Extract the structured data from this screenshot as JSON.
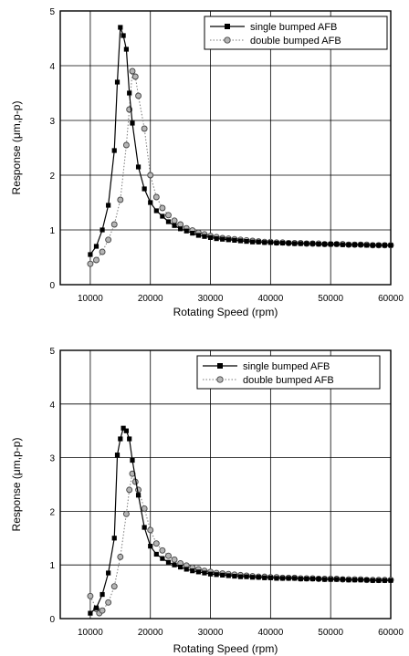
{
  "chart_data": [
    {
      "type": "line",
      "xlabel": "Rotating Speed (rpm)",
      "ylabel": "Response (μm,p-p)",
      "xlim": [
        5000,
        60000
      ],
      "ylim": [
        0,
        5
      ],
      "x_ticks": [
        10000,
        20000,
        30000,
        40000,
        50000,
        60000
      ],
      "y_ticks": [
        0,
        1,
        2,
        3,
        4,
        5
      ],
      "grid": true,
      "legend_position": "top-right",
      "series": [
        {
          "name": "single bumped AFB",
          "marker": "square",
          "line": "solid",
          "color": "#000000",
          "x": [
            10000,
            11000,
            12000,
            13000,
            14000,
            14500,
            15000,
            15500,
            16000,
            16500,
            17000,
            18000,
            19000,
            20000,
            21000,
            22000,
            23000,
            24000,
            25000,
            26000,
            27000,
            28000,
            29000,
            30000,
            31000,
            32000,
            33000,
            34000,
            35000,
            36000,
            37000,
            38000,
            39000,
            40000,
            41000,
            42000,
            43000,
            44000,
            45000,
            46000,
            47000,
            48000,
            49000,
            50000,
            51000,
            52000,
            53000,
            54000,
            55000,
            56000,
            57000,
            58000,
            59000,
            60000
          ],
          "y": [
            0.55,
            0.7,
            1.0,
            1.45,
            2.45,
            3.7,
            4.7,
            4.55,
            4.3,
            3.5,
            2.95,
            2.15,
            1.75,
            1.5,
            1.35,
            1.25,
            1.15,
            1.08,
            1.02,
            0.98,
            0.94,
            0.9,
            0.88,
            0.86,
            0.84,
            0.83,
            0.82,
            0.81,
            0.8,
            0.79,
            0.78,
            0.78,
            0.77,
            0.77,
            0.76,
            0.76,
            0.76,
            0.75,
            0.75,
            0.75,
            0.75,
            0.74,
            0.74,
            0.74,
            0.74,
            0.73,
            0.73,
            0.73,
            0.73,
            0.72,
            0.72,
            0.72,
            0.72,
            0.72
          ]
        },
        {
          "name": "double bumped AFB",
          "marker": "circle",
          "line": "dotted",
          "color": "#7a7a7a",
          "x": [
            10000,
            11000,
            12000,
            13000,
            14000,
            15000,
            16000,
            16500,
            17000,
            17500,
            18000,
            19000,
            20000,
            21000,
            22000,
            23000,
            24000,
            25000,
            26000,
            27000,
            28000,
            29000,
            30000,
            31000,
            32000,
            33000,
            34000,
            35000,
            36000,
            37000,
            38000,
            39000,
            40000,
            41000,
            42000,
            43000,
            44000,
            45000,
            46000,
            47000,
            48000,
            49000,
            50000,
            51000,
            52000,
            53000,
            54000,
            55000,
            56000,
            57000,
            58000,
            59000,
            60000
          ],
          "y": [
            0.38,
            0.45,
            0.6,
            0.82,
            1.1,
            1.55,
            2.55,
            3.2,
            3.9,
            3.8,
            3.45,
            2.85,
            2.0,
            1.6,
            1.4,
            1.27,
            1.17,
            1.1,
            1.03,
            0.99,
            0.95,
            0.92,
            0.89,
            0.87,
            0.85,
            0.84,
            0.83,
            0.82,
            0.81,
            0.8,
            0.79,
            0.78,
            0.78,
            0.77,
            0.77,
            0.76,
            0.76,
            0.76,
            0.75,
            0.75,
            0.75,
            0.74,
            0.74,
            0.74,
            0.74,
            0.73,
            0.73,
            0.73,
            0.73,
            0.72,
            0.72,
            0.72,
            0.72
          ]
        }
      ]
    },
    {
      "type": "line",
      "xlabel": "Rotating Speed (rpm)",
      "ylabel": "Response (μm,p-p)",
      "xlim": [
        5000,
        60000
      ],
      "ylim": [
        0,
        5
      ],
      "x_ticks": [
        10000,
        20000,
        30000,
        40000,
        50000,
        60000
      ],
      "y_ticks": [
        0,
        1,
        2,
        3,
        4,
        5
      ],
      "grid": true,
      "legend_position": "top-right",
      "series": [
        {
          "name": "single bumped AFB",
          "marker": "square",
          "line": "solid",
          "color": "#000000",
          "x": [
            10000,
            11000,
            12000,
            13000,
            14000,
            14500,
            15000,
            15500,
            16000,
            16500,
            17000,
            18000,
            19000,
            20000,
            21000,
            22000,
            23000,
            24000,
            25000,
            26000,
            27000,
            28000,
            29000,
            30000,
            31000,
            32000,
            33000,
            34000,
            35000,
            36000,
            37000,
            38000,
            39000,
            40000,
            41000,
            42000,
            43000,
            44000,
            45000,
            46000,
            47000,
            48000,
            49000,
            50000,
            51000,
            52000,
            53000,
            54000,
            55000,
            56000,
            57000,
            58000,
            59000,
            60000
          ],
          "y": [
            0.1,
            0.2,
            0.45,
            0.85,
            1.5,
            3.05,
            3.35,
            3.55,
            3.5,
            3.35,
            2.95,
            2.3,
            1.7,
            1.35,
            1.2,
            1.12,
            1.05,
            1.0,
            0.96,
            0.92,
            0.89,
            0.87,
            0.85,
            0.83,
            0.82,
            0.81,
            0.8,
            0.79,
            0.78,
            0.78,
            0.77,
            0.77,
            0.76,
            0.76,
            0.75,
            0.75,
            0.75,
            0.75,
            0.74,
            0.74,
            0.74,
            0.74,
            0.73,
            0.73,
            0.73,
            0.73,
            0.72,
            0.72,
            0.72,
            0.72,
            0.71,
            0.71,
            0.71,
            0.71
          ]
        },
        {
          "name": "double bumped AFB",
          "marker": "circle",
          "line": "dotted",
          "color": "#7a7a7a",
          "x": [
            10000,
            11000,
            11500,
            12000,
            13000,
            14000,
            15000,
            16000,
            16500,
            17000,
            17500,
            18000,
            19000,
            20000,
            21000,
            22000,
            23000,
            24000,
            25000,
            26000,
            27000,
            28000,
            29000,
            30000,
            31000,
            32000,
            33000,
            34000,
            35000,
            36000,
            37000,
            38000,
            39000,
            40000,
            41000,
            42000,
            43000,
            44000,
            45000,
            46000,
            47000,
            48000,
            49000,
            50000,
            51000,
            52000,
            53000,
            54000,
            55000,
            56000,
            57000,
            58000,
            59000,
            60000
          ],
          "y": [
            0.42,
            0.18,
            0.1,
            0.15,
            0.3,
            0.6,
            1.15,
            1.95,
            2.4,
            2.7,
            2.55,
            2.4,
            2.05,
            1.65,
            1.4,
            1.27,
            1.17,
            1.1,
            1.03,
            0.99,
            0.95,
            0.92,
            0.89,
            0.87,
            0.85,
            0.84,
            0.83,
            0.82,
            0.81,
            0.8,
            0.79,
            0.78,
            0.78,
            0.77,
            0.77,
            0.76,
            0.76,
            0.76,
            0.75,
            0.75,
            0.75,
            0.74,
            0.74,
            0.74,
            0.74,
            0.73,
            0.73,
            0.73,
            0.73,
            0.72,
            0.72,
            0.72,
            0.72,
            0.72
          ]
        }
      ]
    }
  ]
}
